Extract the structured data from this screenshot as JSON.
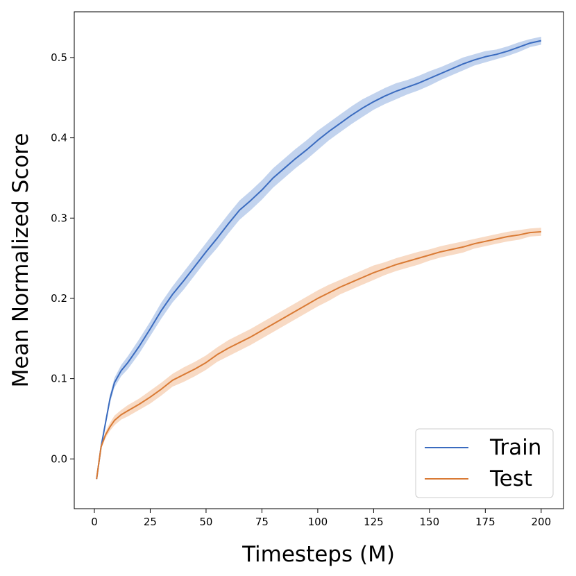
{
  "chart_data": {
    "type": "line",
    "title": "",
    "xlabel": "Timesteps (M)",
    "ylabel": "Mean Normalized Score",
    "xlim": [
      -9,
      210
    ],
    "ylim": [
      -0.062,
      0.557
    ],
    "xticks": [
      0,
      25,
      50,
      75,
      100,
      125,
      150,
      175,
      200
    ],
    "xtick_labels": [
      "0",
      "25",
      "50",
      "75",
      "100",
      "125",
      "150",
      "175",
      "200"
    ],
    "yticks": [
      0.0,
      0.1,
      0.2,
      0.3,
      0.4,
      0.5
    ],
    "ytick_labels": [
      "0.0",
      "0.1",
      "0.2",
      "0.3",
      "0.4",
      "0.5"
    ],
    "grid": false,
    "legend_position": "bottom-right",
    "series": [
      {
        "name": "Train",
        "color": "#3a6bbf",
        "band_color": "#aec4e8",
        "x": [
          1,
          3,
          5,
          7,
          9,
          12,
          15,
          20,
          25,
          30,
          35,
          40,
          45,
          50,
          55,
          60,
          65,
          70,
          75,
          80,
          85,
          90,
          95,
          100,
          105,
          110,
          115,
          120,
          125,
          130,
          135,
          140,
          145,
          150,
          155,
          160,
          165,
          170,
          175,
          180,
          185,
          190,
          195,
          200
        ],
        "values": [
          -0.025,
          0.015,
          0.045,
          0.075,
          0.095,
          0.11,
          0.12,
          0.14,
          0.162,
          0.185,
          0.205,
          0.222,
          0.24,
          0.258,
          0.275,
          0.293,
          0.31,
          0.322,
          0.335,
          0.35,
          0.362,
          0.374,
          0.385,
          0.397,
          0.408,
          0.418,
          0.428,
          0.437,
          0.445,
          0.452,
          0.458,
          0.463,
          0.468,
          0.474,
          0.48,
          0.486,
          0.492,
          0.497,
          0.501,
          0.504,
          0.508,
          0.513,
          0.518,
          0.521
        ],
        "band": [
          0.002,
          0.003,
          0.004,
          0.005,
          0.006,
          0.007,
          0.008,
          0.009,
          0.009,
          0.01,
          0.01,
          0.011,
          0.011,
          0.011,
          0.012,
          0.012,
          0.012,
          0.012,
          0.012,
          0.012,
          0.012,
          0.012,
          0.012,
          0.012,
          0.011,
          0.011,
          0.011,
          0.011,
          0.01,
          0.01,
          0.01,
          0.009,
          0.009,
          0.009,
          0.008,
          0.008,
          0.008,
          0.007,
          0.007,
          0.006,
          0.006,
          0.006,
          0.005,
          0.005
        ]
      },
      {
        "name": "Test",
        "color": "#d97a34",
        "band_color": "#f5cdb0",
        "x": [
          1,
          3,
          5,
          7,
          9,
          12,
          15,
          20,
          25,
          30,
          35,
          40,
          45,
          50,
          55,
          60,
          65,
          70,
          75,
          80,
          85,
          90,
          95,
          100,
          105,
          110,
          115,
          120,
          125,
          130,
          135,
          140,
          145,
          150,
          155,
          160,
          165,
          170,
          175,
          180,
          185,
          190,
          195,
          200
        ],
        "values": [
          -0.025,
          0.015,
          0.03,
          0.04,
          0.048,
          0.055,
          0.06,
          0.068,
          0.077,
          0.087,
          0.098,
          0.105,
          0.112,
          0.12,
          0.13,
          0.138,
          0.145,
          0.152,
          0.16,
          0.168,
          0.176,
          0.184,
          0.192,
          0.2,
          0.207,
          0.214,
          0.22,
          0.226,
          0.232,
          0.237,
          0.242,
          0.246,
          0.25,
          0.254,
          0.258,
          0.261,
          0.264,
          0.268,
          0.271,
          0.274,
          0.277,
          0.279,
          0.282,
          0.283
        ],
        "band": [
          0.002,
          0.003,
          0.004,
          0.005,
          0.006,
          0.006,
          0.007,
          0.007,
          0.008,
          0.008,
          0.008,
          0.009,
          0.009,
          0.009,
          0.009,
          0.01,
          0.01,
          0.01,
          0.01,
          0.01,
          0.01,
          0.01,
          0.01,
          0.01,
          0.01,
          0.009,
          0.009,
          0.009,
          0.009,
          0.008,
          0.008,
          0.008,
          0.008,
          0.007,
          0.007,
          0.007,
          0.007,
          0.006,
          0.006,
          0.006,
          0.006,
          0.006,
          0.005,
          0.005
        ]
      }
    ]
  }
}
